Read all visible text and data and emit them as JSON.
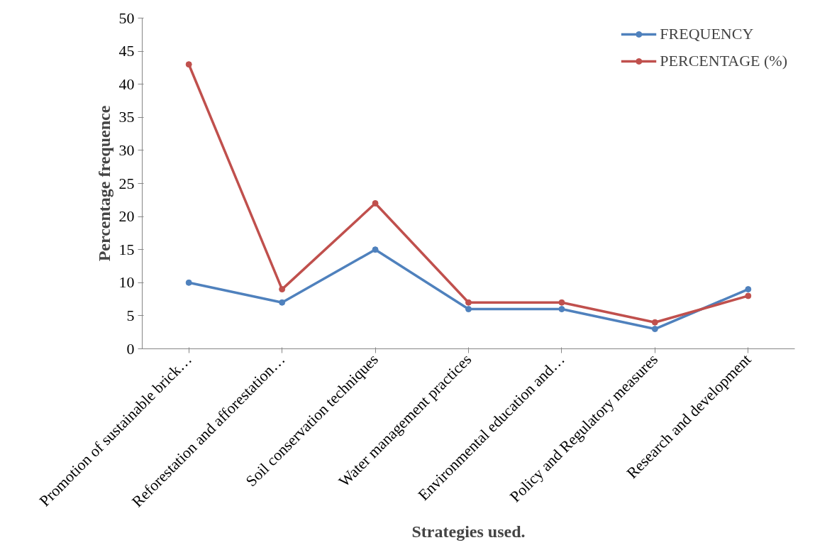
{
  "chart_data": {
    "type": "line",
    "xlabel": "Strategies used.",
    "ylabel": "Percentage frequence",
    "categories": [
      "Promotion of sustainable brick…",
      "Reforestation and afforestation…",
      "Soil conservation techniques",
      "Water management practices",
      "Environmental education and…",
      "Policy and Regulatory measures",
      "Research and development"
    ],
    "series": [
      {
        "name": "FREQUENCY",
        "color": "#4f81bd",
        "values": [
          10,
          7,
          15,
          6,
          6,
          3,
          9
        ]
      },
      {
        "name": "PERCENTAGE (%)",
        "color": "#c0504d",
        "values": [
          43,
          9,
          22,
          7,
          7,
          4,
          8
        ]
      }
    ],
    "ylim": [
      0,
      50
    ],
    "yticks": [
      0,
      5,
      10,
      15,
      20,
      25,
      30,
      35,
      40,
      45,
      50
    ],
    "grid": false,
    "legend": "top right",
    "marker": "circle",
    "line_style": "solid"
  }
}
